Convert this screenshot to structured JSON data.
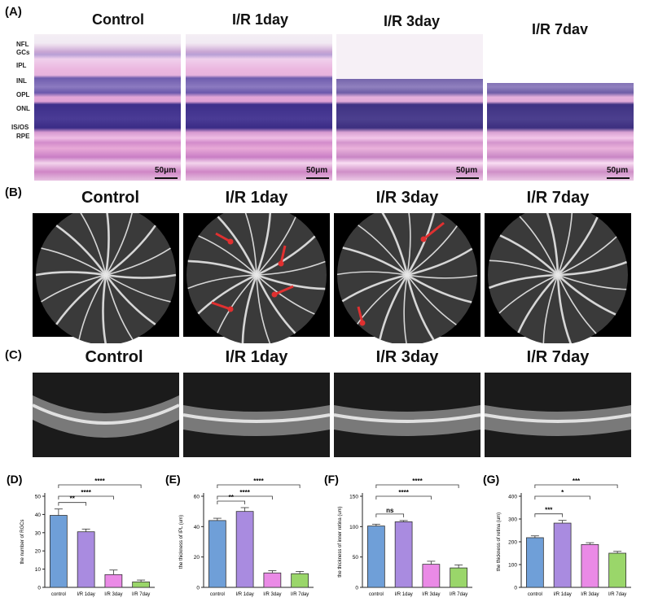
{
  "panel_a": {
    "letter": "(A)",
    "headers": [
      "Control",
      "I/R 1day",
      "I/R 3day",
      "I/R 7day"
    ],
    "layer_labels": [
      "NFL",
      "GCs",
      "IPL",
      "INL",
      "OPL",
      "ONL",
      "IS/OS",
      "RPE"
    ],
    "scale_label": "50μm"
  },
  "panel_b": {
    "letter": "(B)",
    "headers": [
      "Control",
      "I/R 1day",
      "I/R 3day",
      "I/R 7day"
    ]
  },
  "panel_c": {
    "letter": "(C)",
    "headers": [
      "Control",
      "I/R 1day",
      "I/R 3day",
      "I/R 7day"
    ]
  },
  "colors": {
    "control": "#6f9fd8",
    "ir1": "#a98be0",
    "ir3": "#ea8ae6",
    "ir7": "#9ad66a",
    "arrow": "#e03030"
  },
  "chart_data": [
    {
      "letter": "(D)",
      "type": "bar",
      "categories": [
        "control",
        "I/R 1day",
        "I/R 3day",
        "I/R 7day"
      ],
      "values": [
        39.5,
        30.5,
        7,
        3
      ],
      "errors": [
        3.5,
        1.5,
        2.5,
        1
      ],
      "ylabel": "the number of RGCs",
      "ylim": [
        0,
        50
      ],
      "yticks": [
        0,
        10,
        20,
        30,
        40,
        50
      ],
      "significance": [
        {
          "from": 0,
          "to": 1,
          "label": "**"
        },
        {
          "from": 0,
          "to": 2,
          "label": "****"
        },
        {
          "from": 0,
          "to": 3,
          "label": "****"
        }
      ]
    },
    {
      "letter": "(E)",
      "type": "bar",
      "categories": [
        "control",
        "I/R 1day",
        "I/R 3day",
        "I/R 7day"
      ],
      "values": [
        44,
        50,
        9.5,
        9
      ],
      "errors": [
        1.5,
        2.5,
        1.5,
        1.5
      ],
      "ylabel": "the thickness of IPL (um)",
      "ylim": [
        0,
        60
      ],
      "yticks": [
        0,
        20,
        40,
        60
      ],
      "significance": [
        {
          "from": 0,
          "to": 1,
          "label": "**"
        },
        {
          "from": 0,
          "to": 2,
          "label": "****"
        },
        {
          "from": 0,
          "to": 3,
          "label": "****"
        }
      ]
    },
    {
      "letter": "(F)",
      "type": "bar",
      "categories": [
        "control",
        "I/R 1day",
        "I/R 3day",
        "I/R 7day"
      ],
      "values": [
        101,
        108,
        38,
        32
      ],
      "errors": [
        3,
        2,
        5,
        5
      ],
      "ylabel": "the thickness of inner retina (um)",
      "ylim": [
        0,
        150
      ],
      "yticks": [
        0,
        50,
        100,
        150
      ],
      "significance": [
        {
          "from": 0,
          "to": 1,
          "label": "ns"
        },
        {
          "from": 0,
          "to": 2,
          "label": "****"
        },
        {
          "from": 0,
          "to": 3,
          "label": "****"
        }
      ]
    },
    {
      "letter": "(G)",
      "type": "bar",
      "categories": [
        "control",
        "I/R 1day",
        "I/R 3day",
        "I/R 7day"
      ],
      "values": [
        218,
        282,
        188,
        150
      ],
      "errors": [
        8,
        12,
        8,
        8
      ],
      "ylabel": "the thickness of retina (um)",
      "ylim": [
        0,
        400
      ],
      "yticks": [
        0,
        100,
        200,
        300,
        400
      ],
      "significance": [
        {
          "from": 0,
          "to": 1,
          "label": "***"
        },
        {
          "from": 0,
          "to": 2,
          "label": "*"
        },
        {
          "from": 0,
          "to": 3,
          "label": "***"
        }
      ]
    }
  ]
}
